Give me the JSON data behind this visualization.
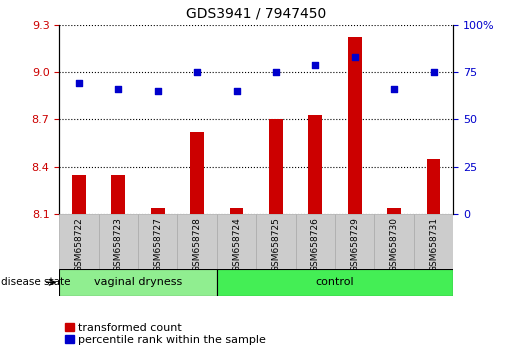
{
  "title": "GDS3941 / 7947450",
  "samples": [
    "GSM658722",
    "GSM658723",
    "GSM658727",
    "GSM658728",
    "GSM658724",
    "GSM658725",
    "GSM658726",
    "GSM658729",
    "GSM658730",
    "GSM658731"
  ],
  "groups": [
    "vaginal dryness",
    "vaginal dryness",
    "vaginal dryness",
    "vaginal dryness",
    "control",
    "control",
    "control",
    "control",
    "control",
    "control"
  ],
  "transformed_count": [
    8.35,
    8.35,
    8.14,
    8.62,
    8.14,
    8.7,
    8.73,
    9.22,
    8.14,
    8.45
  ],
  "percentile_rank": [
    69,
    66,
    65,
    75,
    65,
    75,
    79,
    83,
    66,
    75
  ],
  "ylim_left": [
    8.1,
    9.3
  ],
  "ylim_right": [
    0,
    100
  ],
  "yticks_left": [
    8.1,
    8.4,
    8.7,
    9.0,
    9.3
  ],
  "yticks_right": [
    0,
    25,
    50,
    75,
    100
  ],
  "bar_color": "#cc0000",
  "dot_color": "#0000cc",
  "legend_labels": [
    "transformed count",
    "percentile rank within the sample"
  ],
  "legend_colors": [
    "#cc0000",
    "#0000cc"
  ],
  "vd_color": "#90ee90",
  "ctrl_color": "#44ee55",
  "sample_bg": "#cccccc"
}
